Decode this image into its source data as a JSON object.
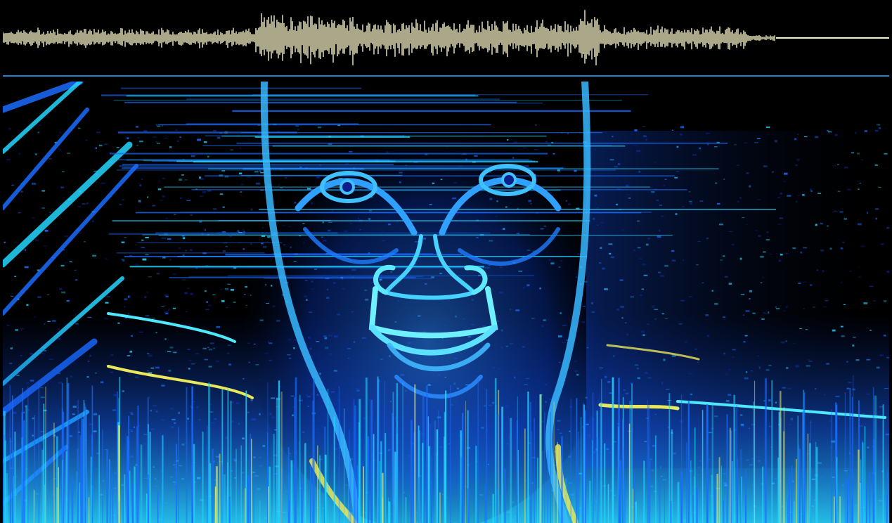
{
  "colors": {
    "background": "#000000",
    "waveform": "#f3efc4",
    "divider": "#1c86c8",
    "spectrogram_low": "#0a1f8a",
    "spectrogram_mid": "#1a6dff",
    "spectrogram_high": "#24d6ff",
    "spectrogram_peak": "#e8e85a"
  },
  "panels": {
    "waveform": "audio-waveform",
    "spectrogram": "spectrogram-face-image"
  }
}
